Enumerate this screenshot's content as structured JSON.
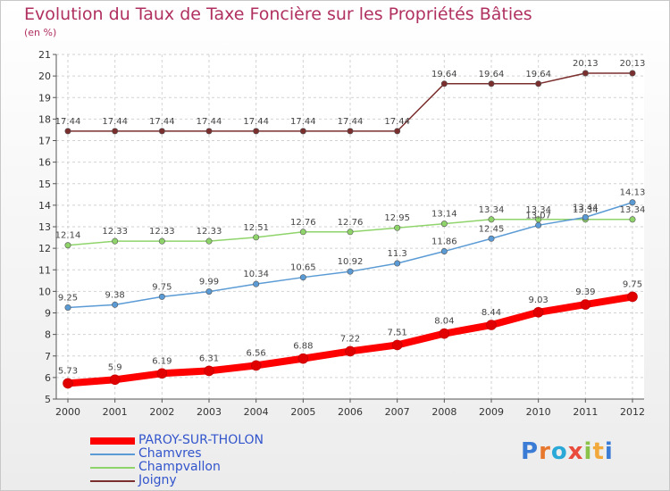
{
  "title": "Evolution du Taux de Taxe Foncière sur les Propriétés Bâties",
  "subtitle": "(en %)",
  "logo_text": "Proxiti",
  "chart_data": {
    "type": "line",
    "x": [
      "2000",
      "2001",
      "2002",
      "2003",
      "2004",
      "2005",
      "2006",
      "2007",
      "2008",
      "2009",
      "2010",
      "2011",
      "2012"
    ],
    "ylim": [
      5,
      21
    ],
    "yticks": [
      5,
      6,
      7,
      8,
      9,
      10,
      11,
      12,
      13,
      14,
      15,
      16,
      17,
      18,
      19,
      20,
      21
    ],
    "grid": true,
    "legend_position": "bottom-left",
    "series": [
      {
        "name": "PAROY-SUR-THOLON",
        "color": "#ff0000",
        "width": 8,
        "values": [
          5.73,
          5.9,
          6.19,
          6.31,
          6.56,
          6.88,
          7.22,
          7.51,
          8.04,
          8.44,
          9.03,
          9.39,
          9.75
        ],
        "labels": [
          "5.73",
          "5.9",
          "6.19",
          "6.31",
          "6.56",
          "6.88",
          "7.22",
          "7.51",
          "8.04",
          "8.44",
          "9.03",
          "9.39",
          "9.75"
        ]
      },
      {
        "name": "Chamvres",
        "color": "#5b9bd5",
        "width": 1.5,
        "values": [
          9.25,
          9.38,
          9.75,
          9.99,
          10.34,
          10.65,
          10.92,
          11.3,
          11.86,
          12.45,
          13.07,
          13.44,
          14.13
        ],
        "labels": [
          "9.25",
          "9.38",
          "9.75",
          "9.99",
          "10.34",
          "10.65",
          "10.92",
          "11.3",
          "11.86",
          "12.45",
          "13.07",
          "13.44",
          "14.13"
        ]
      },
      {
        "name": "Champvallon",
        "color": "#8fd46a",
        "width": 1.5,
        "values": [
          12.14,
          12.33,
          12.33,
          12.33,
          12.51,
          12.76,
          12.76,
          12.95,
          13.14,
          13.34,
          13.34,
          13.34,
          13.34
        ],
        "labels": [
          "12.14",
          "12.33",
          "12.33",
          "12.33",
          "12.51",
          "12.76",
          "12.76",
          "12.95",
          "13.14",
          "13.34",
          "13.34",
          "13.34",
          "13.34"
        ]
      },
      {
        "name": "Joigny",
        "color": "#7b2e2e",
        "width": 1.5,
        "values": [
          17.44,
          17.44,
          17.44,
          17.44,
          17.44,
          17.44,
          17.44,
          17.44,
          19.64,
          19.64,
          19.64,
          20.13,
          20.13
        ],
        "labels": [
          "17.44",
          "17.44",
          "17.44",
          "17.44",
          "17.44",
          "17.44",
          "17.44",
          "17.44",
          "19.64",
          "19.64",
          "19.64",
          "20.13",
          "20.13"
        ]
      }
    ]
  }
}
